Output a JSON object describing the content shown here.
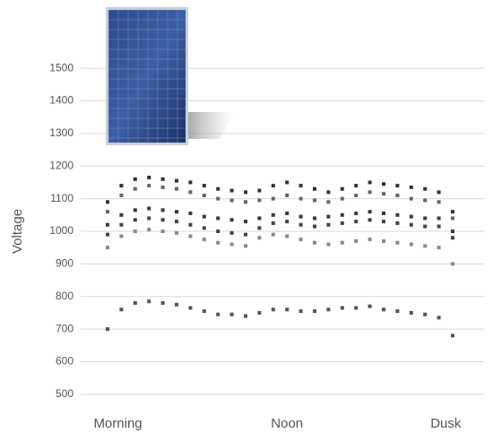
{
  "chart_data": {
    "type": "scatter",
    "y_label": "Voltage",
    "x": [
      0,
      4,
      8,
      12,
      16,
      20,
      24,
      28,
      32,
      36,
      40,
      44,
      48,
      52,
      56,
      60,
      64,
      68,
      72,
      76,
      80,
      84,
      88,
      92,
      96,
      100
    ],
    "xlim": [
      0,
      100
    ],
    "xticks": [
      {
        "value": 3,
        "label": "Morning"
      },
      {
        "value": 52,
        "label": "Noon"
      },
      {
        "value": 98,
        "label": "Dusk"
      }
    ],
    "ylim": [
      450,
      1550
    ],
    "yticks": [
      500,
      600,
      700,
      800,
      900,
      1000,
      1100,
      1200,
      1300,
      1400,
      1500
    ],
    "grid": true,
    "series": [
      {
        "color": "#333333",
        "values": [
          1090,
          1140,
          1160,
          1165,
          1160,
          1155,
          1150,
          1140,
          1130,
          1125,
          1120,
          1125,
          1140,
          1150,
          1140,
          1130,
          1120,
          1130,
          1140,
          1150,
          1145,
          1140,
          1135,
          1130,
          1120,
          1060
        ]
      },
      {
        "color": "#666666",
        "values": [
          1060,
          1110,
          1130,
          1140,
          1135,
          1130,
          1120,
          1110,
          1100,
          1095,
          1090,
          1095,
          1100,
          1110,
          1100,
          1095,
          1090,
          1100,
          1110,
          1120,
          1115,
          1110,
          1100,
          1095,
          1090,
          1040
        ]
      },
      {
        "color": "#3a3a3a",
        "values": [
          1020,
          1050,
          1065,
          1070,
          1065,
          1060,
          1055,
          1045,
          1040,
          1035,
          1030,
          1040,
          1050,
          1055,
          1045,
          1040,
          1045,
          1050,
          1055,
          1060,
          1055,
          1050,
          1045,
          1040,
          1040,
          1000
        ]
      },
      {
        "color": "#444444",
        "values": [
          990,
          1020,
          1035,
          1040,
          1035,
          1030,
          1020,
          1010,
          1000,
          995,
          990,
          1010,
          1025,
          1030,
          1020,
          1015,
          1020,
          1025,
          1030,
          1035,
          1030,
          1025,
          1020,
          1015,
          1015,
          980
        ]
      },
      {
        "color": "#888888",
        "values": [
          950,
          985,
          1000,
          1005,
          1000,
          995,
          985,
          975,
          965,
          960,
          955,
          980,
          990,
          985,
          975,
          965,
          960,
          965,
          970,
          975,
          970,
          965,
          960,
          955,
          950,
          900
        ]
      },
      {
        "color": "#555555",
        "values": [
          700,
          760,
          780,
          785,
          780,
          775,
          765,
          755,
          745,
          745,
          740,
          750,
          760,
          760,
          755,
          755,
          760,
          765,
          765,
          770,
          760,
          755,
          750,
          745,
          735,
          680
        ]
      }
    ]
  }
}
